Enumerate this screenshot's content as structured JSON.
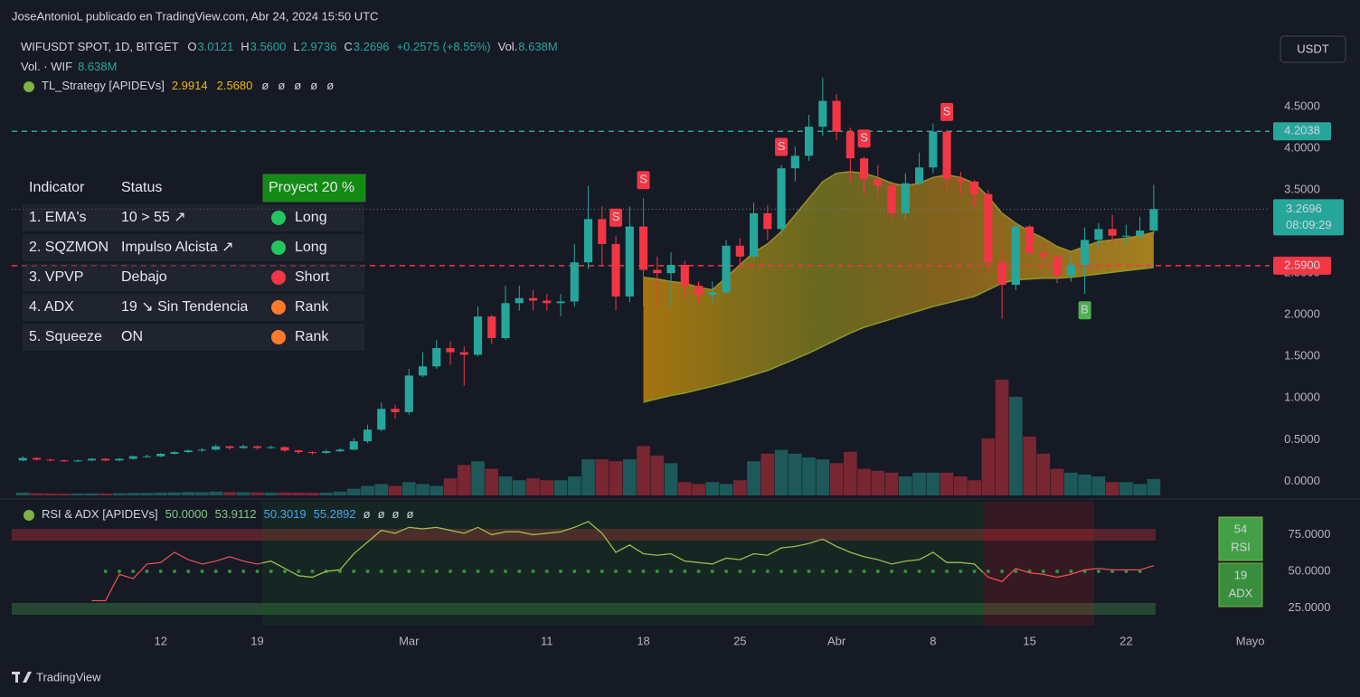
{
  "header": {
    "publisher": "JoseAntonioL publicado en TradingView.com, Abr 24, 2024 15:50 UTC",
    "currency_button": "USDT",
    "brand": "TradingView"
  },
  "legend": {
    "symbol": "WIFUSDT SPOT, 1D, BITGET",
    "fields": [
      {
        "key": "O",
        "value": "3.0121"
      },
      {
        "key": "H",
        "value": "3.5600"
      },
      {
        "key": "L",
        "value": "2.9736"
      },
      {
        "key": "C",
        "value": "3.2696"
      }
    ],
    "change": "+0.2575 (+8.55%)",
    "vol_key": "Vol.",
    "vol_value": "8.638M",
    "volume_line": {
      "label": "Vol. · WIF",
      "value": "8.638M"
    },
    "strategy_line": {
      "label": "TL_Strategy [APIDEVs]",
      "values": [
        "2.9914",
        "2.5680",
        "ø",
        "ø",
        "ø",
        "ø",
        "ø"
      ]
    }
  },
  "table": {
    "headers": [
      "Indicator",
      "Status",
      "Proyect 20 %"
    ],
    "rows": [
      {
        "cells": [
          "1. EMA's",
          "10 > 55 ↗",
          "Long"
        ],
        "dot": "#22c55e"
      },
      {
        "cells": [
          "2. SQZMON",
          "Impulso Alcista ↗",
          "Long"
        ],
        "dot": "#22c55e"
      },
      {
        "cells": [
          "3. VPVP",
          "Debajo",
          "Short"
        ],
        "dot": "#f23645"
      },
      {
        "cells": [
          "4. ADX",
          "19 ↘ Sin Tendencia",
          "Rank"
        ],
        "dot": "#ff7b29"
      },
      {
        "cells": [
          "5. Squeeze",
          "ON",
          "Rank"
        ],
        "dot": "#ff7b29"
      }
    ]
  },
  "chart_data": [
    {
      "type": "candlestick",
      "up_color": "#26a69a",
      "down_color": "#f23645",
      "xlim": [
        -0.8,
        90.4
      ],
      "xticks": [
        {
          "value": 10,
          "label": "12"
        },
        {
          "value": 17,
          "label": "19"
        },
        {
          "value": 28,
          "label": "Mar"
        },
        {
          "value": 38,
          "label": "11"
        },
        {
          "value": 45,
          "label": "18"
        },
        {
          "value": 52,
          "label": "25"
        },
        {
          "value": 59,
          "label": "Abr"
        },
        {
          "value": 66,
          "label": "8"
        },
        {
          "value": 73,
          "label": "15"
        },
        {
          "value": 80,
          "label": "22"
        },
        {
          "value": 89,
          "label": "Mayo"
        }
      ],
      "ylim": [
        -0.17,
        5.0
      ],
      "yticks": [
        {
          "value": 0,
          "label": "0.0000"
        },
        {
          "value": 0.5,
          "label": "0.5000"
        },
        {
          "value": 1,
          "label": "1.0000"
        },
        {
          "value": 1.5,
          "label": "1.5000"
        },
        {
          "value": 2,
          "label": "2.0000"
        },
        {
          "value": 2.5,
          "label": "2.5000"
        },
        {
          "value": 3,
          "label": "3.0000"
        },
        {
          "value": 3.5,
          "label": "3.5000"
        },
        {
          "value": 4,
          "label": "4.0000"
        },
        {
          "value": 4.5,
          "label": "4.5000"
        }
      ],
      "grid": false,
      "open": [
        0.25,
        0.28,
        0.26,
        0.25,
        0.24,
        0.25,
        0.27,
        0.25,
        0.27,
        0.3,
        0.3,
        0.33,
        0.35,
        0.37,
        0.38,
        0.42,
        0.4,
        0.42,
        0.4,
        0.41,
        0.37,
        0.35,
        0.34,
        0.36,
        0.38,
        0.48,
        0.62,
        0.87,
        0.83,
        1.27,
        1.38,
        1.6,
        1.55,
        1.52,
        1.98,
        1.72,
        2.14,
        2.2,
        2.17,
        2.14,
        2.16,
        2.63,
        3.15,
        2.85,
        2.22,
        3.06,
        2.54,
        2.5,
        2.6,
        2.35,
        2.24,
        2.27,
        2.83,
        2.7,
        3.22,
        3.03,
        3.76,
        3.91,
        4.26,
        4.57,
        4.2,
        3.88,
        3.63,
        3.55,
        3.22,
        3.58,
        3.77,
        4.2,
        3.63,
        3.6,
        3.45,
        2.63,
        2.36,
        3.06,
        2.74,
        2.7,
        2.47,
        2.6,
        2.9,
        3.03,
        2.95,
        2.95,
        3.0121
      ],
      "high": [
        0.3,
        0.29,
        0.27,
        0.26,
        0.26,
        0.28,
        0.28,
        0.28,
        0.31,
        0.32,
        0.34,
        0.36,
        0.38,
        0.4,
        0.44,
        0.43,
        0.44,
        0.43,
        0.43,
        0.42,
        0.38,
        0.36,
        0.38,
        0.4,
        0.52,
        0.68,
        0.95,
        0.92,
        1.35,
        1.55,
        1.7,
        1.68,
        1.62,
        2.1,
        2.0,
        2.35,
        2.35,
        2.3,
        2.25,
        2.25,
        2.85,
        3.55,
        3.3,
        2.95,
        3.3,
        3.4,
        2.7,
        2.75,
        2.65,
        2.4,
        2.4,
        2.9,
        2.92,
        3.35,
        3.32,
        3.8,
        4.02,
        4.4,
        4.85,
        4.65,
        4.25,
        3.9,
        3.8,
        3.6,
        3.7,
        3.95,
        4.3,
        4.22,
        3.72,
        3.62,
        3.5,
        2.78,
        3.1,
        3.08,
        2.85,
        2.72,
        2.72,
        3.05,
        3.1,
        3.2,
        3.08,
        3.18,
        3.56
      ],
      "low": [
        0.24,
        0.25,
        0.24,
        0.23,
        0.23,
        0.24,
        0.24,
        0.24,
        0.26,
        0.28,
        0.29,
        0.32,
        0.34,
        0.35,
        0.37,
        0.38,
        0.39,
        0.38,
        0.39,
        0.35,
        0.33,
        0.32,
        0.33,
        0.35,
        0.37,
        0.46,
        0.6,
        0.75,
        0.8,
        1.25,
        1.35,
        1.4,
        1.15,
        1.5,
        1.65,
        1.7,
        2.05,
        2.05,
        2.05,
        1.98,
        2.1,
        2.55,
        2.6,
        2.05,
        2.15,
        2.1,
        2.1,
        2.1,
        2.2,
        2.15,
        2.15,
        2.25,
        2.6,
        2.65,
        2.9,
        2.95,
        3.6,
        3.85,
        4.15,
        4.1,
        3.6,
        3.45,
        3.4,
        3.15,
        3.15,
        3.55,
        3.7,
        3.5,
        3.45,
        3.3,
        2.5,
        1.95,
        2.3,
        2.65,
        2.55,
        2.38,
        2.4,
        2.25,
        2.8,
        2.85,
        2.85,
        2.9,
        2.9736
      ],
      "close": [
        0.28,
        0.26,
        0.25,
        0.24,
        0.25,
        0.27,
        0.25,
        0.27,
        0.3,
        0.3,
        0.33,
        0.35,
        0.37,
        0.38,
        0.42,
        0.4,
        0.42,
        0.4,
        0.41,
        0.37,
        0.35,
        0.34,
        0.36,
        0.38,
        0.48,
        0.62,
        0.87,
        0.83,
        1.27,
        1.38,
        1.6,
        1.55,
        1.52,
        1.98,
        1.72,
        2.14,
        2.2,
        2.17,
        2.14,
        2.16,
        2.63,
        3.15,
        2.85,
        2.22,
        3.06,
        2.54,
        2.5,
        2.6,
        2.35,
        2.24,
        2.27,
        2.83,
        2.7,
        3.22,
        3.03,
        3.76,
        3.91,
        4.26,
        4.57,
        4.2,
        3.88,
        3.63,
        3.55,
        3.22,
        3.58,
        3.77,
        4.2,
        3.63,
        3.6,
        3.45,
        2.63,
        2.36,
        3.06,
        2.74,
        2.7,
        2.47,
        2.6,
        2.9,
        3.03,
        2.95,
        2.95,
        3.0121,
        3.2696
      ],
      "volume": [
        1.5,
        1.2,
        1.0,
        0.9,
        1.0,
        1.1,
        1.0,
        1.2,
        1.3,
        1.3,
        1.5,
        1.6,
        1.8,
        1.7,
        2.0,
        1.8,
        1.7,
        1.6,
        1.5,
        1.6,
        1.5,
        1.4,
        1.5,
        2.0,
        3.5,
        5,
        6,
        5,
        7,
        6,
        5,
        9,
        16,
        18,
        14,
        10,
        8,
        9,
        8,
        8,
        10,
        19,
        19,
        18,
        19,
        26,
        21,
        17,
        7,
        6,
        7,
        6,
        8,
        18,
        22,
        24,
        22,
        20,
        19,
        17,
        23,
        14,
        13,
        12,
        10,
        12,
        12,
        12,
        10,
        8,
        30,
        61,
        52,
        31,
        22,
        14,
        12,
        11,
        10,
        7,
        7,
        6,
        8.638
      ],
      "ema_fast": [
        null,
        null,
        null,
        null,
        null,
        null,
        null,
        null,
        null,
        null,
        null,
        null,
        null,
        null,
        null,
        null,
        null,
        null,
        null,
        null,
        null,
        null,
        null,
        null,
        null,
        null,
        null,
        null,
        null,
        null,
        null,
        null,
        null,
        null,
        null,
        null,
        null,
        null,
        null,
        null,
        null,
        null,
        null,
        null,
        null,
        2.45,
        2.43,
        2.4,
        2.38,
        2.33,
        2.3,
        2.45,
        2.6,
        2.75,
        2.85,
        3.0,
        3.2,
        3.4,
        3.6,
        3.7,
        3.72,
        3.7,
        3.65,
        3.58,
        3.55,
        3.58,
        3.65,
        3.68,
        3.65,
        3.58,
        3.42,
        3.22,
        3.1,
        3.0,
        2.92,
        2.82,
        2.76,
        2.82,
        2.88,
        2.9,
        2.92,
        2.95,
        2.9914
      ],
      "ema_slow": [
        null,
        null,
        null,
        null,
        null,
        null,
        null,
        null,
        null,
        null,
        null,
        null,
        null,
        null,
        null,
        null,
        null,
        null,
        null,
        null,
        null,
        null,
        null,
        null,
        null,
        null,
        null,
        null,
        null,
        null,
        null,
        null,
        null,
        null,
        null,
        null,
        null,
        null,
        null,
        null,
        null,
        null,
        null,
        null,
        null,
        0.95,
        0.99,
        1.03,
        1.06,
        1.1,
        1.14,
        1.18,
        1.23,
        1.28,
        1.33,
        1.4,
        1.47,
        1.54,
        1.62,
        1.7,
        1.78,
        1.85,
        1.9,
        1.95,
        2.0,
        2.05,
        2.1,
        2.14,
        2.18,
        2.22,
        2.3,
        2.38,
        2.42,
        2.43,
        2.44,
        2.44,
        2.45,
        2.47,
        2.49,
        2.51,
        2.53,
        2.55,
        2.568
      ],
      "signals": [
        {
          "label": "S",
          "at": 43
        },
        {
          "label": "S",
          "at": 45
        },
        {
          "label": "S",
          "at": 55
        },
        {
          "label": "S",
          "at": 61
        },
        {
          "label": "S",
          "at": 67
        },
        {
          "label": "B",
          "at": 77
        }
      ],
      "price_lines": [
        {
          "value": 4.2038,
          "color": "#26a69a"
        },
        {
          "value": 2.59,
          "label": "2.5900",
          "color": "#f23645"
        }
      ],
      "countdown": "08:09:29"
    },
    {
      "type": "line",
      "title": "RSI & ADX [APIDEVs]",
      "header_values": [
        "50.0000",
        "53.9112",
        "50.3019",
        "55.2892",
        "ø",
        "ø",
        "ø",
        "ø"
      ],
      "xlim": [
        -0.8,
        90.4
      ],
      "ylim": [
        13,
        97.5
      ],
      "yticks": [
        {
          "value": 25,
          "label": "25.0000"
        },
        {
          "value": 50,
          "label": "50.0000"
        },
        {
          "value": 75,
          "label": "75.0000"
        }
      ],
      "level": 50,
      "level_color": "#388e3c",
      "series": [
        {
          "name": "RSI",
          "color": "#ef5350",
          "values": [
            null,
            null,
            null,
            null,
            null,
            30,
            30,
            48,
            45,
            55,
            56,
            63,
            58,
            55,
            57,
            60,
            57,
            55,
            57,
            52,
            47,
            46,
            50,
            51,
            62,
            70,
            78,
            76,
            80,
            79,
            80,
            78,
            76,
            80,
            75,
            77,
            77,
            75,
            76,
            77,
            80,
            84,
            76,
            63,
            68,
            62,
            61,
            62,
            57,
            56,
            55,
            59,
            58,
            62,
            61,
            66,
            67,
            69,
            72,
            67,
            63,
            60,
            58,
            55,
            57,
            58,
            63,
            56,
            56,
            55,
            46,
            43,
            52,
            49,
            48,
            46,
            48,
            51,
            52,
            51,
            51,
            51,
            53.9112
          ]
        }
      ],
      "badges": [
        {
          "value": 54,
          "label": "RSI"
        },
        {
          "value": 19,
          "label": "ADX"
        }
      ]
    }
  ]
}
